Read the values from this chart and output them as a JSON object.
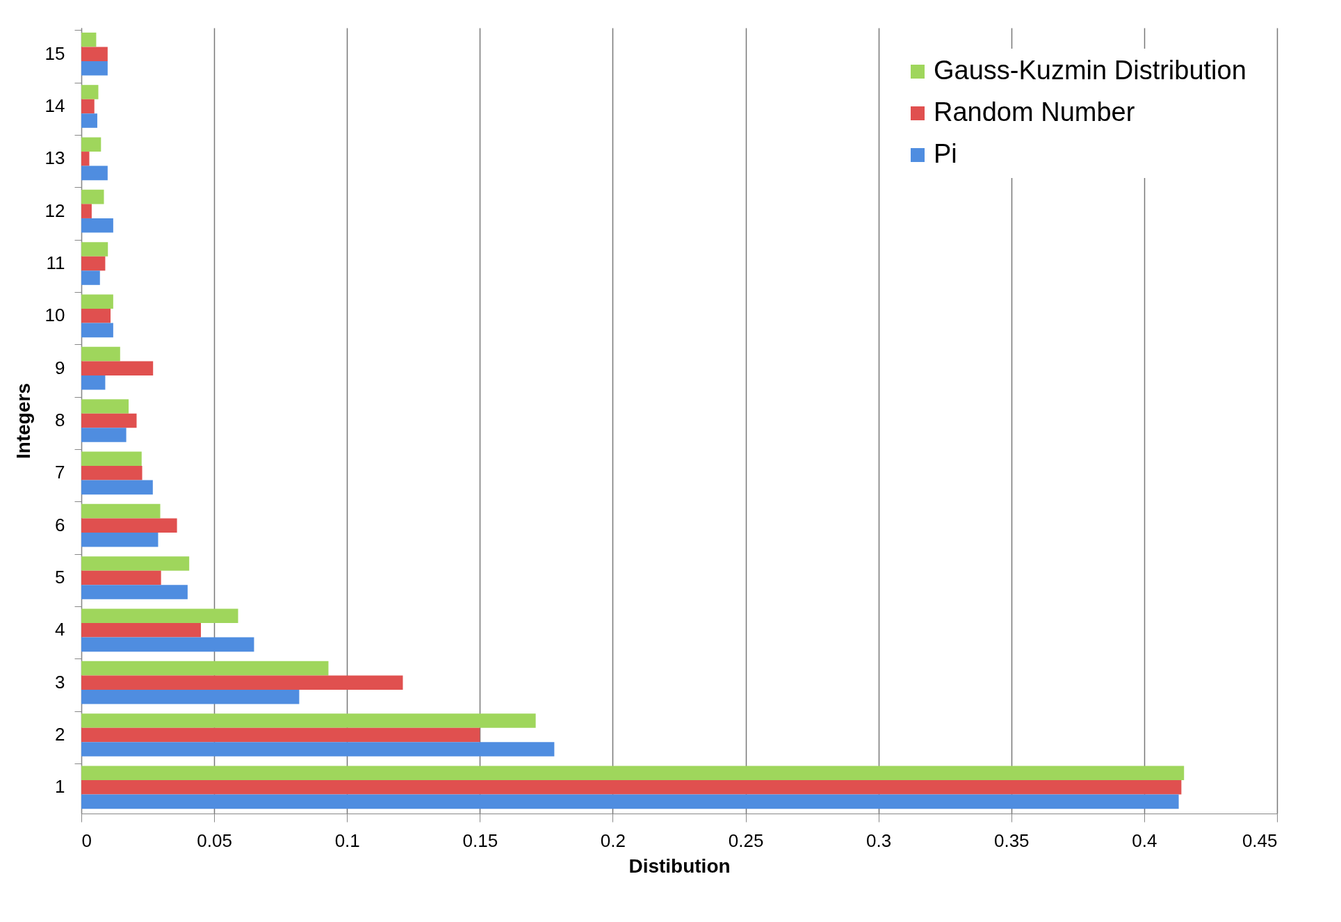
{
  "chart_data": {
    "type": "bar",
    "orientation": "horizontal",
    "xlabel": "Distibution",
    "ylabel": "Integers",
    "categories": [
      "15",
      "14",
      "13",
      "12",
      "11",
      "10",
      "9",
      "8",
      "7",
      "6",
      "5",
      "4",
      "3",
      "2",
      "1"
    ],
    "series": [
      {
        "name": "Gauss-Kuzmin Distribution",
        "color": "#9fd65c",
        "values": [
          0.0056,
          0.0064,
          0.0074,
          0.0085,
          0.01,
          0.012,
          0.0146,
          0.0178,
          0.0227,
          0.0297,
          0.0406,
          0.059,
          0.093,
          0.171,
          0.415
        ]
      },
      {
        "name": "Random Number",
        "color": "#e0504f",
        "values": [
          0.0099,
          0.0049,
          0.003,
          0.0039,
          0.009,
          0.011,
          0.027,
          0.0208,
          0.0229,
          0.036,
          0.03,
          0.045,
          0.121,
          0.15,
          0.414
        ]
      },
      {
        "name": "Pi",
        "color": "#4f8de0",
        "values": [
          0.0099,
          0.006,
          0.0099,
          0.012,
          0.007,
          0.012,
          0.009,
          0.0169,
          0.0269,
          0.0289,
          0.04,
          0.065,
          0.082,
          0.178,
          0.413
        ]
      }
    ],
    "xlim": [
      0,
      0.45
    ],
    "xticks": [
      0,
      0.05,
      0.1,
      0.15,
      0.2,
      0.25,
      0.3,
      0.35,
      0.4,
      0.45
    ],
    "grid": "x",
    "legend": "top right"
  }
}
